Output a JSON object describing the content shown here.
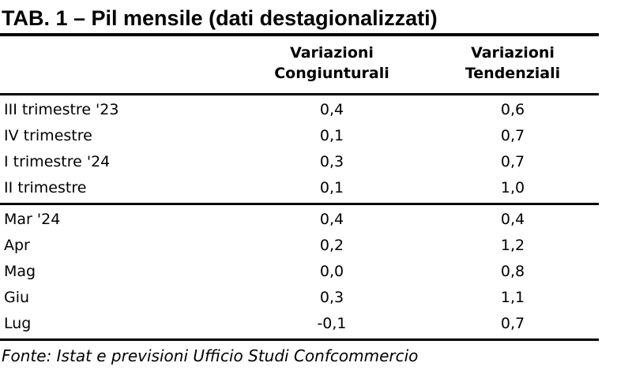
{
  "title": "TAB. 1 – Pil mensile (dati destagionalizzati)",
  "header": {
    "col_congiunturali": "Variazioni\nCongiunturali",
    "col_tendenziali": "Variazioni\nTendenziali"
  },
  "chart_data": {
    "type": "table",
    "title": "TAB. 1 – Pil mensile (dati destagionalizzati)",
    "columns": [
      "",
      "Variazioni Congiunturali",
      "Variazioni Tendenziali"
    ],
    "groups": [
      {
        "name": "trimestri",
        "rows": [
          {
            "label": "III trimestre '23",
            "congiunturali": "0,4",
            "tendenziali": "0,6"
          },
          {
            "label": "IV trimestre",
            "congiunturali": "0,1",
            "tendenziali": "0,7"
          },
          {
            "label": "I trimestre '24",
            "congiunturali": "0,3",
            "tendenziali": "0,7"
          },
          {
            "label": "II trimestre",
            "congiunturali": "0,1",
            "tendenziali": "1,0"
          }
        ]
      },
      {
        "name": "mesi",
        "rows": [
          {
            "label": "Mar '24",
            "congiunturali": "0,4",
            "tendenziali": "0,4"
          },
          {
            "label": "Apr",
            "congiunturali": "0,2",
            "tendenziali": "1,2"
          },
          {
            "label": "Mag",
            "congiunturali": "0,0",
            "tendenziali": "0,8"
          },
          {
            "label": "Giu",
            "congiunturali": "0,3",
            "tendenziali": "1,1"
          },
          {
            "label": "Lug",
            "congiunturali": "-0,1",
            "tendenziali": "0,7"
          }
        ]
      }
    ],
    "source": "Fonte: Istat e previsioni Ufficio Studi Confcommercio"
  },
  "footer": {
    "source": "Fonte: Istat e previsioni Ufficio Studi Confcommercio"
  },
  "colors": {
    "text": "#000000",
    "background": "#ffffff",
    "rule": "#000000"
  }
}
